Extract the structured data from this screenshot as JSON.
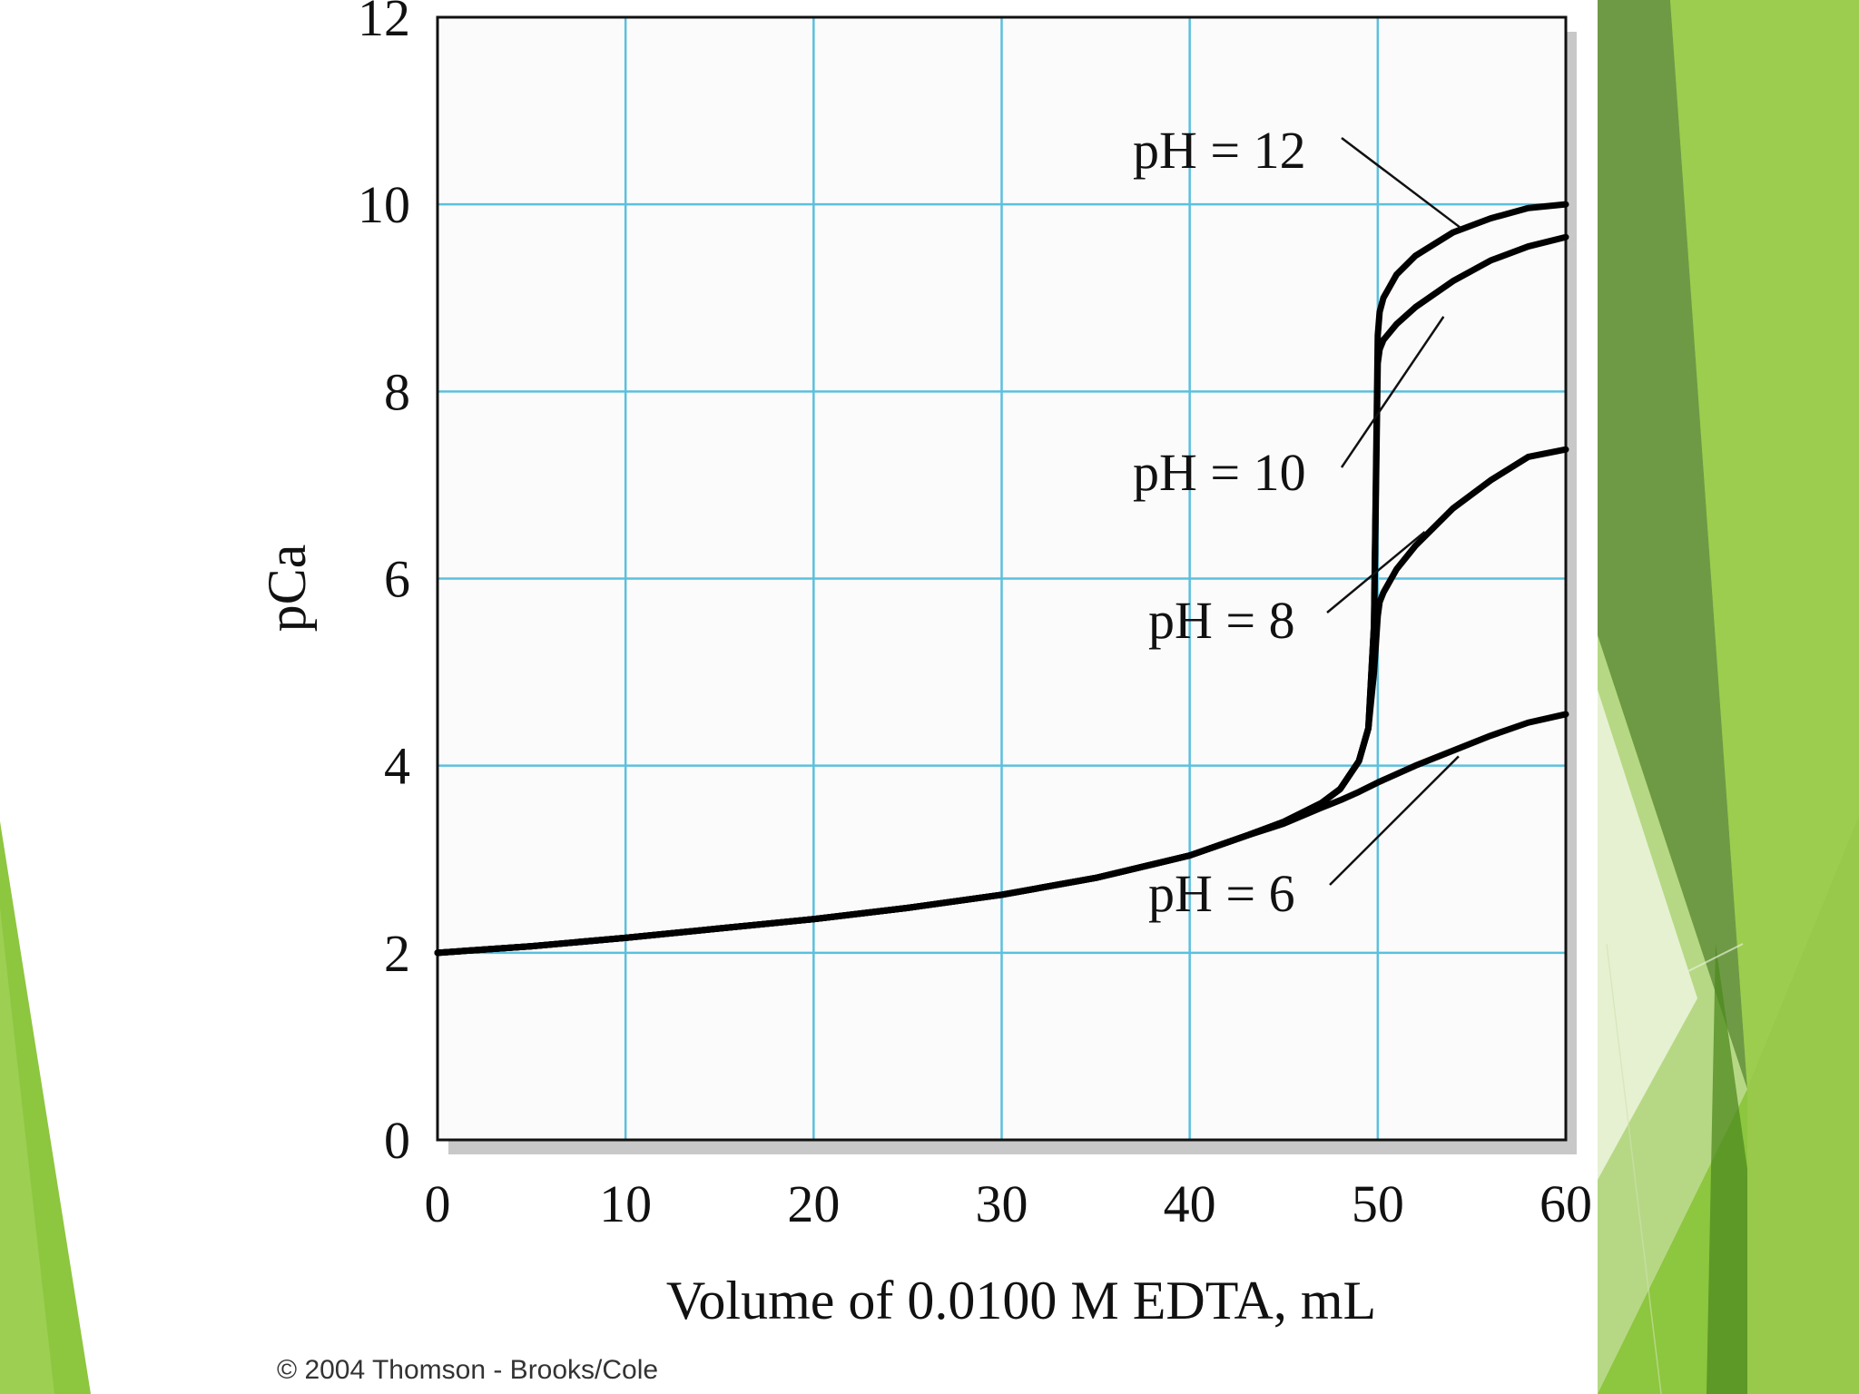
{
  "slide": {
    "background": "#ffffff",
    "accent_colors": [
      "#8dc63f",
      "#6b9a45",
      "#b5d67a",
      "#e6f1d2",
      "#4e8a1f"
    ]
  },
  "chart_data": {
    "type": "line",
    "xlabel": "Volume of 0.0100 M EDTA, mL",
    "ylabel": "pCa",
    "xlim": [
      0,
      60
    ],
    "ylim": [
      0,
      12
    ],
    "xticks": [
      "0",
      "10",
      "20",
      "30",
      "40",
      "50",
      "60"
    ],
    "yticks": [
      "0",
      "2",
      "4",
      "6",
      "8",
      "10",
      "12"
    ],
    "grid": true,
    "grid_color": "#5bc0de",
    "line_color": "#000000",
    "series": [
      {
        "name": "pH = 12",
        "x": [
          0,
          5,
          10,
          15,
          20,
          25,
          30,
          35,
          40,
          43,
          45,
          47,
          48,
          49,
          49.5,
          49.8,
          50,
          50.1,
          50.3,
          51,
          52,
          54,
          56,
          58,
          60
        ],
        "y": [
          2.0,
          2.07,
          2.16,
          2.26,
          2.36,
          2.48,
          2.62,
          2.8,
          3.04,
          3.25,
          3.4,
          3.6,
          3.75,
          4.05,
          4.4,
          5.5,
          8.6,
          8.85,
          9.0,
          9.25,
          9.45,
          9.7,
          9.85,
          9.96,
          10.0
        ]
      },
      {
        "name": "pH = 10",
        "x": [
          0,
          5,
          10,
          15,
          20,
          25,
          30,
          35,
          40,
          43,
          45,
          47,
          48,
          49,
          49.5,
          49.8,
          50,
          50.1,
          50.3,
          51,
          52,
          54,
          56,
          58,
          60
        ],
        "y": [
          2.0,
          2.07,
          2.16,
          2.26,
          2.36,
          2.48,
          2.62,
          2.8,
          3.04,
          3.25,
          3.4,
          3.6,
          3.75,
          4.05,
          4.4,
          5.5,
          8.3,
          8.45,
          8.55,
          8.72,
          8.9,
          9.18,
          9.4,
          9.55,
          9.65
        ]
      },
      {
        "name": "pH = 8",
        "x": [
          0,
          5,
          10,
          15,
          20,
          25,
          30,
          35,
          40,
          43,
          45,
          47,
          48,
          49,
          49.5,
          49.8,
          50,
          50.1,
          50.3,
          51,
          52,
          54,
          56,
          58,
          60
        ],
        "y": [
          2.0,
          2.07,
          2.16,
          2.26,
          2.36,
          2.48,
          2.62,
          2.8,
          3.04,
          3.25,
          3.4,
          3.6,
          3.75,
          4.05,
          4.4,
          5.0,
          5.6,
          5.75,
          5.85,
          6.1,
          6.35,
          6.75,
          7.05,
          7.3,
          7.38
        ]
      },
      {
        "name": "pH = 6",
        "x": [
          0,
          5,
          10,
          15,
          20,
          25,
          30,
          35,
          40,
          43,
          45,
          47,
          48,
          49,
          50,
          51,
          52,
          54,
          56,
          58,
          60
        ],
        "y": [
          2.0,
          2.07,
          2.16,
          2.26,
          2.36,
          2.48,
          2.62,
          2.8,
          3.04,
          3.25,
          3.38,
          3.55,
          3.63,
          3.72,
          3.82,
          3.91,
          4.0,
          4.16,
          4.32,
          4.46,
          4.55
        ]
      }
    ],
    "annotations": [
      {
        "text": "pH = 12",
        "series": "pH = 12"
      },
      {
        "text": "pH = 10",
        "series": "pH = 10"
      },
      {
        "text": "pH = 8",
        "series": "pH = 8"
      },
      {
        "text": "pH = 6",
        "series": "pH = 6"
      }
    ]
  },
  "footer": {
    "copyright": "© 2004 Thomson - Brooks/Cole"
  }
}
